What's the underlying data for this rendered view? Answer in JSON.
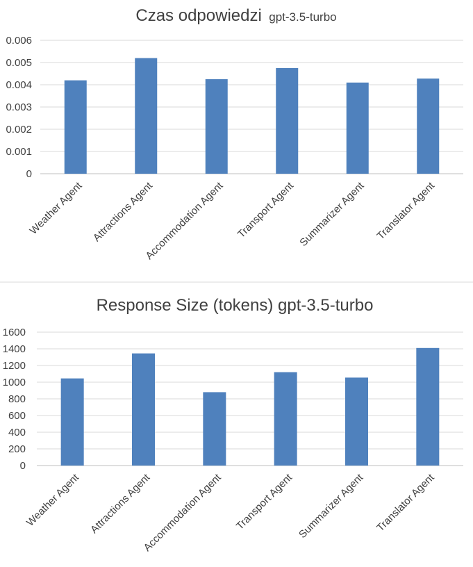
{
  "chart_data": [
    {
      "type": "bar",
      "title": "Czas odpowiedzi",
      "subtitle": "gpt-3.5-turbo",
      "categories": [
        "Weather Agent",
        "Attractions Agent",
        "Accommodation Agent",
        "Transport Agent",
        "Summarizer Agent",
        "Translator Agent"
      ],
      "values": [
        0.0042,
        0.0052,
        0.00425,
        0.00475,
        0.0041,
        0.00428
      ],
      "ylim": [
        0,
        0.006
      ],
      "yticks": [
        "0",
        "0.001",
        "0.002",
        "0.003",
        "0.004",
        "0.005",
        "0.006"
      ],
      "grid": true,
      "color": "#4f81bd"
    },
    {
      "type": "bar",
      "title": "Response Size (tokens) gpt-3.5-turbo",
      "categories": [
        "Weather Agent",
        "Attractions Agent",
        "Accommodation Agent",
        "Transport Agent",
        "Summarizer Agent",
        "Translator Agent"
      ],
      "values": [
        1045,
        1345,
        880,
        1120,
        1055,
        1410
      ],
      "ylim": [
        0,
        1600
      ],
      "yticks": [
        "0",
        "200",
        "400",
        "600",
        "800",
        "1000",
        "1200",
        "1400",
        "1600"
      ],
      "grid": true,
      "color": "#4f81bd"
    }
  ]
}
